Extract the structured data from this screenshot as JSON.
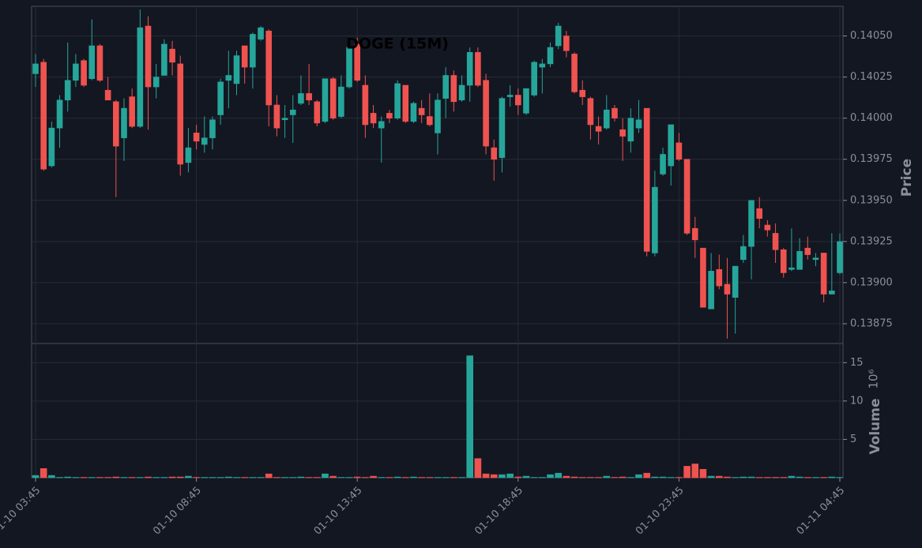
{
  "chart_data": {
    "type": "candlestick",
    "title": "DOGE (15M)",
    "ylabel": "Price",
    "volume_label": "Volume",
    "volume_scale": "10⁶",
    "up_color": "#26a69a",
    "down_color": "#ef5350",
    "grid": true,
    "categories": [
      "01-10 03:45",
      null,
      null,
      null,
      null,
      null,
      null,
      null,
      null,
      null,
      null,
      null,
      null,
      null,
      null,
      null,
      null,
      null,
      null,
      null,
      "01-10 08:45",
      null,
      null,
      null,
      null,
      null,
      null,
      null,
      null,
      null,
      null,
      null,
      null,
      null,
      null,
      null,
      null,
      null,
      null,
      null,
      "01-10 13:45",
      null,
      null,
      null,
      null,
      null,
      null,
      null,
      null,
      null,
      null,
      null,
      null,
      null,
      null,
      null,
      null,
      null,
      null,
      null,
      "01-10 18:45",
      null,
      null,
      null,
      null,
      null,
      null,
      null,
      null,
      null,
      null,
      null,
      null,
      null,
      null,
      null,
      null,
      null,
      null,
      null,
      "01-10 23:45",
      null,
      null,
      null,
      null,
      null,
      null,
      null,
      null,
      null,
      null,
      null,
      null,
      null,
      null,
      null,
      null,
      null,
      null,
      null,
      "01-11 04:45"
    ],
    "open": [
      0.14027,
      0.14034,
      0.13971,
      0.13994,
      0.14011,
      0.14023,
      0.14035,
      0.14024,
      0.14044,
      0.14017,
      0.1401,
      0.13988,
      0.14013,
      0.13995,
      0.14056,
      0.14019,
      0.14026,
      0.14042,
      0.14033,
      0.13973,
      0.13991,
      0.13984,
      0.13988,
      0.14002,
      0.14023,
      0.14021,
      0.14044,
      0.14031,
      0.14048,
      0.14053,
      0.14008,
      0.13999,
      0.14002,
      0.14009,
      0.14015,
      0.1401,
      0.13998,
      0.14024,
      0.14001,
      0.14019,
      0.14045,
      0.1402,
      0.14003,
      0.13994,
      0.14003,
      0.14,
      0.1402,
      0.13998,
      0.14006,
      0.14001,
      0.13991,
      0.14012,
      0.14026,
      0.14011,
      0.1402,
      0.1404,
      0.14023,
      0.13982,
      0.13976,
      0.14013,
      0.14014,
      0.14003,
      0.14014,
      0.14031,
      0.14033,
      0.14044,
      0.1405,
      0.14039,
      0.14017,
      0.14012,
      0.13995,
      0.13994,
      0.14006,
      0.13993,
      0.13986,
      0.13994,
      0.14006,
      0.13918,
      0.13966,
      0.13971,
      0.13985,
      0.13975,
      0.13933,
      0.13921,
      0.13884,
      0.13908,
      0.13899,
      0.13891,
      0.13914,
      0.13922,
      0.13945,
      0.13935,
      0.1393,
      0.1392,
      0.13908,
      0.13908,
      0.13921,
      0.13914,
      0.13918,
      0.13893,
      0.13906
    ],
    "high": [
      0.14039,
      0.14036,
      0.13998,
      0.14014,
      0.14046,
      0.14039,
      0.14036,
      0.1406,
      0.14045,
      0.14025,
      0.14011,
      0.14012,
      0.14018,
      0.14066,
      0.14062,
      0.14033,
      0.14048,
      0.14047,
      0.14038,
      0.13994,
      0.13996,
      0.14001,
      0.14001,
      0.14024,
      0.14041,
      0.14041,
      0.14044,
      0.14052,
      0.14056,
      0.14054,
      0.14014,
      0.14008,
      0.14014,
      0.14026,
      0.14033,
      0.14011,
      0.14024,
      0.14025,
      0.14026,
      0.14046,
      0.14049,
      0.14026,
      0.14008,
      0.14001,
      0.14005,
      0.14023,
      0.1402,
      0.1401,
      0.14011,
      0.14015,
      0.14015,
      0.14031,
      0.14029,
      0.14026,
      0.14043,
      0.14043,
      0.14027,
      0.13987,
      0.14013,
      0.1402,
      0.14018,
      0.14018,
      0.14035,
      0.14036,
      0.14046,
      0.14058,
      0.14053,
      0.1404,
      0.14023,
      0.14013,
      0.14001,
      0.14014,
      0.14008,
      0.14,
      0.14006,
      0.14011,
      0.14006,
      0.13968,
      0.13982,
      0.13996,
      0.13991,
      0.13975,
      0.1394,
      0.13921,
      0.13918,
      0.13917,
      0.13915,
      0.1391,
      0.13929,
      0.1395,
      0.13952,
      0.13938,
      0.13936,
      0.13921,
      0.13933,
      0.13927,
      0.13928,
      0.13918,
      0.13918,
      0.1393,
      0.1393
    ],
    "low": [
      0.14019,
      0.13968,
      0.1397,
      0.13982,
      0.14004,
      0.14019,
      0.14019,
      0.14023,
      0.14022,
      0.14011,
      0.13952,
      0.13974,
      0.13994,
      0.13994,
      0.13993,
      0.14012,
      0.14026,
      0.14026,
      0.13965,
      0.13967,
      0.13981,
      0.13979,
      0.13981,
      0.13996,
      0.14006,
      0.14014,
      0.14021,
      0.14018,
      0.14047,
      0.13995,
      0.13989,
      0.13988,
      0.13985,
      0.14008,
      0.14008,
      0.13995,
      0.13997,
      0.13999,
      0.14,
      0.14018,
      0.14022,
      0.13988,
      0.13994,
      0.13973,
      0.13997,
      0.13999,
      0.13997,
      0.13997,
      0.13997,
      0.13995,
      0.13978,
      0.14,
      0.14004,
      0.1401,
      0.1401,
      0.14019,
      0.13978,
      0.13962,
      0.13967,
      0.14007,
      0.14002,
      0.14002,
      0.14013,
      0.14015,
      0.14031,
      0.14042,
      0.14037,
      0.14015,
      0.14008,
      0.13987,
      0.13984,
      0.13993,
      0.13998,
      0.13974,
      0.13979,
      0.13991,
      0.13916,
      0.13916,
      0.13965,
      0.13959,
      0.13974,
      0.13929,
      0.13915,
      0.13885,
      0.13884,
      0.13896,
      0.13866,
      0.13869,
      0.13912,
      0.13902,
      0.13933,
      0.13928,
      0.13912,
      0.13903,
      0.13907,
      0.13908,
      0.13914,
      0.1391,
      0.13888,
      0.13893,
      0.13905
    ],
    "close": [
      0.14033,
      0.13969,
      0.13994,
      0.14011,
      0.14023,
      0.14033,
      0.1402,
      0.14044,
      0.14023,
      0.14011,
      0.13983,
      0.14006,
      0.13995,
      0.14055,
      0.14019,
      0.14025,
      0.14045,
      0.14034,
      0.13972,
      0.13982,
      0.13986,
      0.13988,
      0.13999,
      0.14022,
      0.14026,
      0.14038,
      0.14031,
      0.14051,
      0.14055,
      0.14008,
      0.13994,
      0.14,
      0.14005,
      0.14015,
      0.14011,
      0.13997,
      0.14024,
      0.14,
      0.14019,
      0.14043,
      0.14023,
      0.13996,
      0.13997,
      0.13998,
      0.14,
      0.14021,
      0.13998,
      0.14009,
      0.14002,
      0.13996,
      0.14011,
      0.14026,
      0.1401,
      0.1402,
      0.1404,
      0.1402,
      0.13983,
      0.13975,
      0.14012,
      0.14014,
      0.14008,
      0.14018,
      0.14034,
      0.14033,
      0.14043,
      0.14056,
      0.14041,
      0.14016,
      0.14013,
      0.13996,
      0.13992,
      0.14005,
      0.14,
      0.13989,
      0.14,
      0.13999,
      0.13919,
      0.13958,
      0.13978,
      0.13996,
      0.13975,
      0.1393,
      0.13926,
      0.13885,
      0.13907,
      0.13898,
      0.13893,
      0.1391,
      0.13922,
      0.1395,
      0.13939,
      0.13932,
      0.1392,
      0.13906,
      0.13909,
      0.13919,
      0.13917,
      0.13915,
      0.13893,
      0.13895,
      0.13925
    ],
    "volume": [
      0.3,
      1.2,
      0.3,
      0.05,
      0.1,
      0.05,
      0.05,
      0.05,
      0.05,
      0.05,
      0.1,
      0.05,
      0.05,
      0.05,
      0.1,
      0.05,
      0.05,
      0.1,
      0.1,
      0.2,
      0.05,
      0.05,
      0.05,
      0.05,
      0.1,
      0.05,
      0.05,
      0.05,
      0.05,
      0.5,
      0.05,
      0.05,
      0.05,
      0.1,
      0.05,
      0.05,
      0.5,
      0.2,
      0.05,
      0.05,
      0.1,
      0.05,
      0.2,
      0.05,
      0.05,
      0.1,
      0.05,
      0.1,
      0.05,
      0.05,
      0.05,
      0.05,
      0.05,
      0.05,
      15.9,
      2.5,
      0.5,
      0.4,
      0.4,
      0.5,
      0.1,
      0.2,
      0.05,
      0.05,
      0.4,
      0.6,
      0.2,
      0.1,
      0.05,
      0.05,
      0.05,
      0.2,
      0.05,
      0.1,
      0.05,
      0.4,
      0.6,
      0.1,
      0.1,
      0.05,
      0.05,
      1.5,
      1.8,
      1.1,
      0.2,
      0.2,
      0.1,
      0.05,
      0.1,
      0.1,
      0.05,
      0.05,
      0.05,
      0.05,
      0.2,
      0.1,
      0.05,
      0.05,
      0.05,
      0.1,
      0.05
    ],
    "ylim": [
      0.13863,
      0.14068
    ],
    "yticks": [
      0.13875,
      {
        "value": 0.139,
        "label": "0.13900"
      },
      0.13925,
      {
        "value": 0.1395,
        "label": "0.13950"
      },
      0.13975,
      {
        "value": 0.14,
        "label": "0.14000"
      },
      0.14025,
      {
        "value": 0.1405,
        "label": "0.14050"
      }
    ],
    "volume_lim": [
      0,
      17.5
    ],
    "volume_ticks": [
      5,
      10,
      15
    ]
  }
}
